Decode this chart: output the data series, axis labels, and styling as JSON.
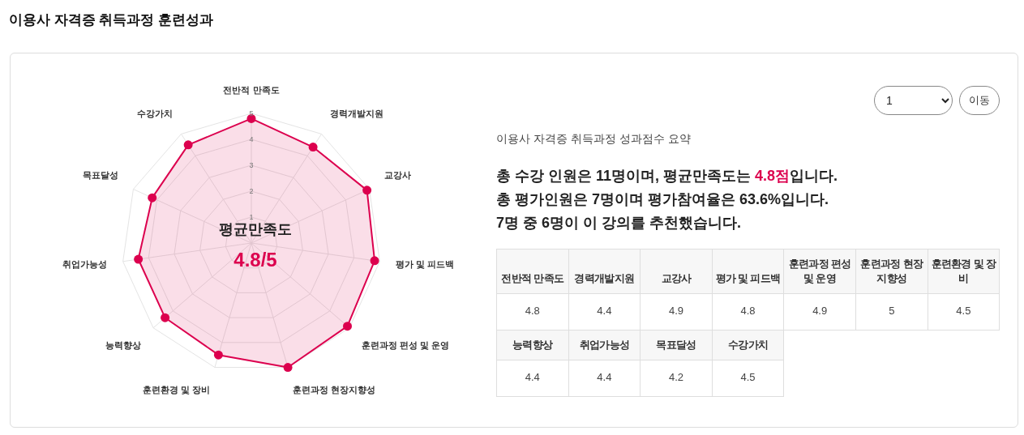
{
  "chart_data": [
    {
      "type": "radar",
      "title": "이용사 자격증 취득과정 훈련성과",
      "subtitle": "이용사 자격증 취득과정 성과점수 요약",
      "categories": [
        "전반적 만족도",
        "경력개발지원",
        "교강사",
        "평가 및 피드백",
        "훈련과정 편성 및 운영",
        "훈련과정 현장지향성",
        "훈련환경 및 장비",
        "능력향상",
        "취업가능성",
        "목표달성",
        "수강가치"
      ],
      "series": [
        {
          "color": "#dc004e",
          "values": [
            4.8,
            4.4,
            4.9,
            4.8,
            4.9,
            5,
            4.5,
            4.4,
            4.4,
            4.2,
            4.5
          ]
        }
      ],
      "ylim": [
        0,
        5
      ],
      "yticks": [
        1,
        2,
        3,
        4,
        5
      ],
      "grid": true,
      "marker": "circle",
      "annotations": [
        "평균만족도",
        "4.8/5",
        "1",
        "이동",
        "총 수강 인원은 11명이며, 평균만족도는 ",
        "4.8점",
        "입니다.",
        "총 평가인원은 7명이며 평가참여율은 63.6%입니다.",
        "7명 중 6명이 이 강의를 추천했습니다."
      ]
    },
    {
      "type": "other",
      "categories": [
        "전반적 만족도",
        "경력개발지원",
        "교강사",
        "평가 및 피드백",
        "훈련과정 편성 및 운영",
        "훈련과정 현장지향성",
        "훈련환경 및 장비",
        "능력향상",
        "취업가능성",
        "목표달성",
        "수강가치"
      ],
      "values": [
        4.8,
        4.4,
        4.9,
        4.8,
        4.9,
        5,
        4.5,
        4.4,
        4.4,
        4.2,
        4.5
      ],
      "data_labels": true
    }
  ]
}
